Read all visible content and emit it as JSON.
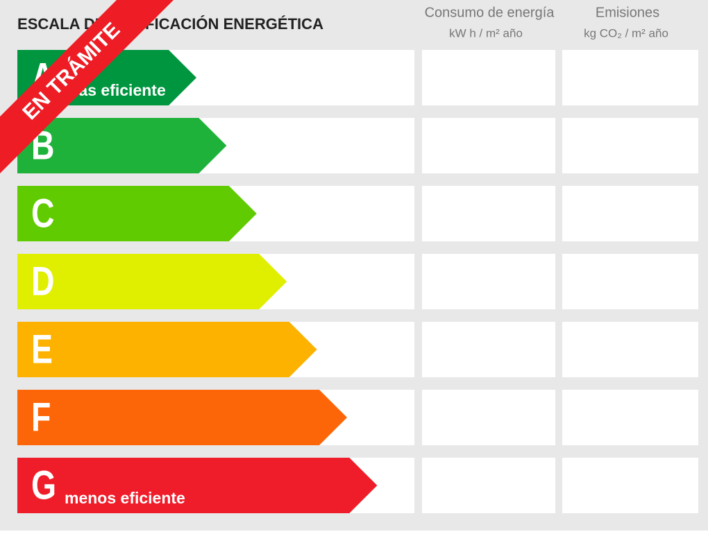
{
  "header": {
    "title": "ESCALA DE CALIFICACIÓN ENERGÉTICA",
    "columns": [
      {
        "title": "Consumo de energía",
        "unit": "kW h / m² año"
      },
      {
        "title": "Emisiones",
        "unit": "kg CO₂ / m² año"
      }
    ]
  },
  "ratings": [
    {
      "letter": "A",
      "note": "más eficiente"
    },
    {
      "letter": "B"
    },
    {
      "letter": "C"
    },
    {
      "letter": "D"
    },
    {
      "letter": "E"
    },
    {
      "letter": "F"
    },
    {
      "letter": "G",
      "note": "menos eficiente"
    }
  ],
  "ribbon": "EN TRÁMITE"
}
